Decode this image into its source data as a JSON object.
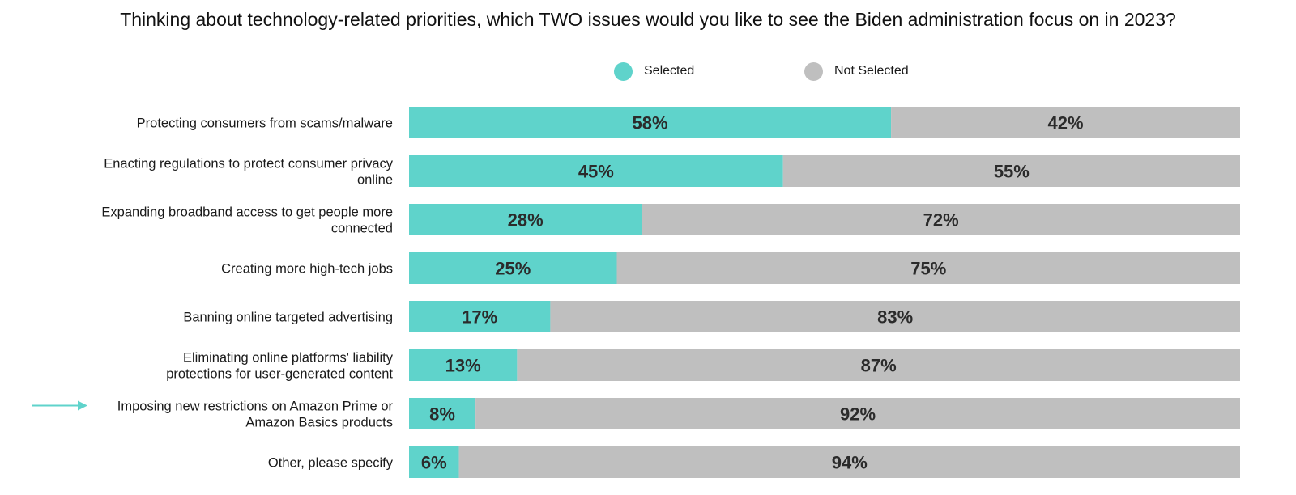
{
  "chart_data": {
    "type": "bar",
    "orientation": "horizontal",
    "stacked": true,
    "title": "Thinking about technology-related priorities, which TWO issues would you like to see the Biden administration focus on in 2023?",
    "legend_position": "top-center",
    "categories": [
      [
        "Protecting consumers from scams/malware"
      ],
      [
        "Enacting regulations to protect consumer privacy",
        "online"
      ],
      [
        "Expanding broadband access to get people more",
        "connected"
      ],
      [
        "Creating more high-tech jobs"
      ],
      [
        "Banning online targeted advertising"
      ],
      [
        "Eliminating online platforms' liability",
        "protections for user-generated content"
      ],
      [
        "Imposing new restrictions on Amazon Prime or",
        "Amazon Basics products"
      ],
      [
        "Other, please specify"
      ]
    ],
    "highlighted_category_index": 6,
    "series": [
      {
        "name": "Selected",
        "color": "#5fd3cb",
        "values": [
          58,
          45,
          28,
          25,
          17,
          13,
          8,
          6
        ],
        "labels": [
          "58%",
          "45%",
          "28%",
          "25%",
          "17%",
          "13%",
          "8%",
          "6%"
        ]
      },
      {
        "name": "Not Selected",
        "color": "#bfbfbf",
        "values": [
          42,
          55,
          72,
          75,
          83,
          87,
          92,
          94
        ],
        "labels": [
          "42%",
          "55%",
          "72%",
          "75%",
          "83%",
          "87%",
          "92%",
          "94%"
        ]
      }
    ],
    "xlim": [
      0,
      100
    ],
    "grid": false,
    "arrow_color": "#5fd3cb"
  }
}
